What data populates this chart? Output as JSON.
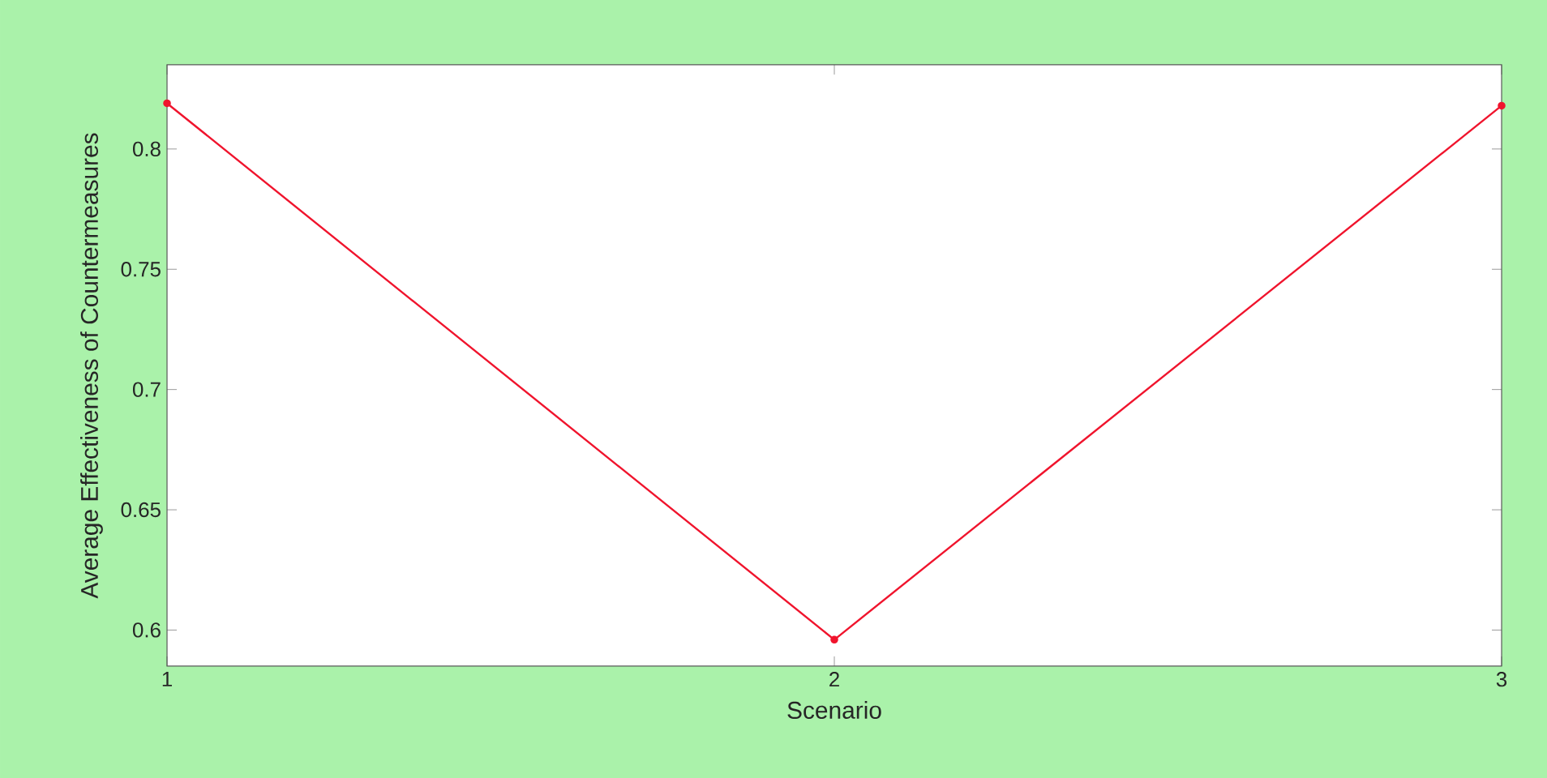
{
  "chart_data": {
    "type": "line",
    "xlabel": "Scenario",
    "ylabel": "Average Effectiveness of Countermeasures",
    "x": [
      1,
      2,
      3
    ],
    "values": [
      0.819,
      0.596,
      0.818
    ],
    "color": "#f0142d",
    "marker": "circle",
    "xlim": [
      1,
      3
    ],
    "xticks": [
      1,
      2,
      3
    ],
    "ylim": [
      0.585,
      0.835
    ],
    "yticks": [
      0.6,
      0.65,
      0.7,
      0.75,
      0.8
    ],
    "grid": false
  }
}
